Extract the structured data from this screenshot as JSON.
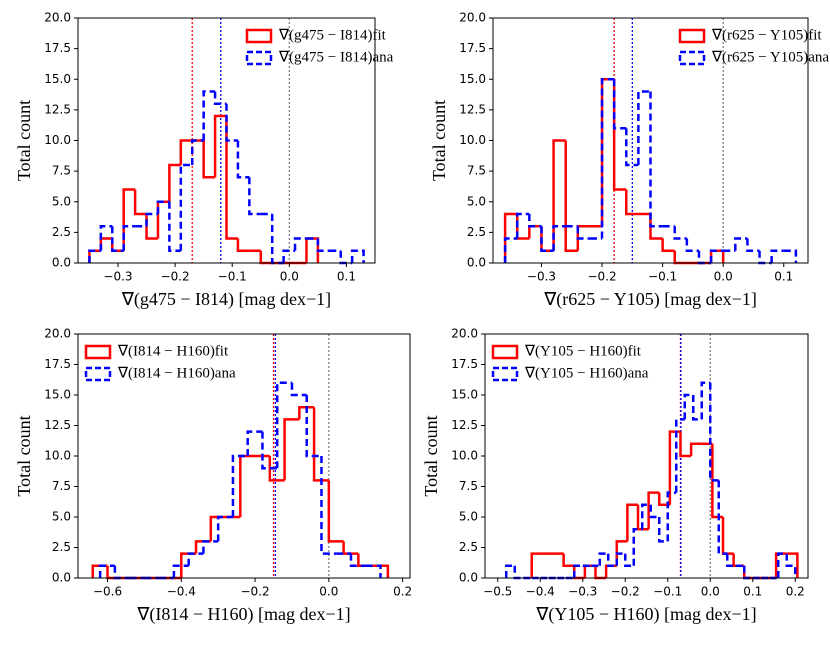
{
  "chart_data": [
    {
      "type": "histogram",
      "xlabel": "∇(g475 − I814) [mag dex−1]",
      "ylabel": "Total count",
      "xlim": [
        -0.37,
        0.15
      ],
      "ylim": [
        0,
        20
      ],
      "xticks": [
        {
          "value": -0.3,
          "label": "−0.3"
        },
        {
          "value": -0.2,
          "label": "−0.2"
        },
        {
          "value": -0.1,
          "label": "−0.1"
        },
        {
          "value": 0,
          "label": "0.0"
        },
        0.1
      ],
      "yticks": [
        {
          "value": 0,
          "label": "0.0"
        },
        2.5,
        {
          "value": 5,
          "label": "5.0"
        },
        7.5,
        {
          "value": 10,
          "label": "10.0"
        },
        12.5,
        {
          "value": 15,
          "label": "15.0"
        },
        17.5,
        {
          "value": 20,
          "label": "20.0"
        }
      ],
      "legend": "upper right",
      "vlines": [
        {
          "value": -0.17,
          "color": "#ff0000"
        },
        {
          "value": -0.12,
          "color": "#0000ff"
        },
        {
          "value": 0,
          "color": "#808080"
        }
      ],
      "series": [
        {
          "name": "∇(g475 − I814)fit",
          "color": "#ff0000",
          "linestyle": "solid",
          "bins": [
            -0.35,
            -0.33,
            -0.31,
            -0.29,
            -0.27,
            -0.25,
            -0.23,
            -0.21,
            -0.19,
            -0.17,
            -0.15,
            -0.13,
            -0.11,
            -0.09,
            -0.07,
            -0.05,
            -0.03,
            -0.01,
            0.01,
            0.03,
            0.05
          ],
          "values": [
            1,
            2,
            1,
            6,
            4,
            2,
            5,
            8,
            10,
            10,
            7,
            12,
            2,
            1,
            1,
            0,
            0,
            0,
            0,
            2
          ]
        },
        {
          "name": "∇(g475 − I814)ana",
          "color": "#0000ff",
          "linestyle": "dashed",
          "bins": [
            -0.35,
            -0.33,
            -0.31,
            -0.29,
            -0.27,
            -0.25,
            -0.23,
            -0.21,
            -0.19,
            -0.17,
            -0.15,
            -0.13,
            -0.11,
            -0.09,
            -0.07,
            -0.05,
            -0.03,
            -0.01,
            0.01,
            0.03,
            0.05,
            0.07,
            0.09,
            0.11,
            0.13
          ],
          "values": [
            1,
            3,
            1,
            3,
            3,
            4,
            5,
            1,
            8,
            10,
            14,
            13,
            10,
            7,
            4,
            4,
            0,
            1,
            2,
            2,
            1,
            1,
            0,
            1
          ]
        }
      ]
    },
    {
      "type": "histogram",
      "xlabel": "∇(r625 − Y105) [mag dex−1]",
      "ylabel": "Total count",
      "xlim": [
        -0.38,
        0.14
      ],
      "ylim": [
        0,
        20
      ],
      "xticks": [
        {
          "value": -0.3,
          "label": "−0.3"
        },
        {
          "value": -0.2,
          "label": "−0.2"
        },
        {
          "value": -0.1,
          "label": "−0.1"
        },
        {
          "value": 0,
          "label": "0.0"
        },
        0.1
      ],
      "yticks": [
        {
          "value": 0,
          "label": "0.0"
        },
        2.5,
        {
          "value": 5,
          "label": "5.0"
        },
        7.5,
        {
          "value": 10,
          "label": "10.0"
        },
        12.5,
        {
          "value": 15,
          "label": "15.0"
        },
        17.5,
        {
          "value": 20,
          "label": "20.0"
        }
      ],
      "legend": "upper right",
      "vlines": [
        {
          "value": -0.18,
          "color": "#ff0000"
        },
        {
          "value": -0.15,
          "color": "#0000ff"
        },
        {
          "value": 0,
          "color": "#808080"
        }
      ],
      "series": [
        {
          "name": "∇(r625 − Y105)fit",
          "color": "#ff0000",
          "linestyle": "solid",
          "bins": [
            -0.36,
            -0.34,
            -0.32,
            -0.3,
            -0.28,
            -0.26,
            -0.24,
            -0.22,
            -0.2,
            -0.18,
            -0.16,
            -0.14,
            -0.12,
            -0.1,
            -0.08,
            -0.06,
            -0.04,
            -0.02,
            0
          ],
          "values": [
            4,
            2,
            3,
            1,
            10,
            1,
            3,
            3,
            15,
            6,
            4,
            4,
            2,
            1,
            0,
            0,
            0,
            1
          ]
        },
        {
          "name": "∇(r625 − Y105)ana",
          "color": "#0000ff",
          "linestyle": "dashed",
          "bins": [
            -0.36,
            -0.34,
            -0.32,
            -0.3,
            -0.28,
            -0.26,
            -0.24,
            -0.22,
            -0.2,
            -0.18,
            -0.16,
            -0.14,
            -0.12,
            -0.1,
            -0.08,
            -0.06,
            -0.04,
            -0.02,
            0,
            0.02,
            0.04,
            0.06,
            0.08,
            0.1,
            0.12
          ],
          "values": [
            2,
            4,
            3,
            1,
            3,
            3,
            2,
            2,
            15,
            11,
            8,
            14,
            3,
            3,
            2,
            1,
            0,
            1,
            1,
            2,
            1,
            0,
            1,
            1
          ]
        }
      ]
    },
    {
      "type": "histogram",
      "xlabel": "∇(I814 − H160) [mag dex−1]",
      "ylabel": "Total count",
      "xlim": [
        -0.68,
        0.22
      ],
      "ylim": [
        0,
        20
      ],
      "xticks": [
        {
          "value": -0.6,
          "label": "−0.6"
        },
        {
          "value": -0.4,
          "label": "−0.4"
        },
        {
          "value": -0.2,
          "label": "−0.2"
        },
        {
          "value": 0,
          "label": "0.0"
        },
        0.2
      ],
      "yticks": [
        {
          "value": 0,
          "label": "0.0"
        },
        2.5,
        {
          "value": 5,
          "label": "5.0"
        },
        7.5,
        {
          "value": 10,
          "label": "10.0"
        },
        12.5,
        {
          "value": 15,
          "label": "15.0"
        },
        17.5,
        {
          "value": 20,
          "label": "20.0"
        }
      ],
      "legend": "upper left",
      "vlines": [
        {
          "value": -0.15,
          "color": "#ff0000"
        },
        {
          "value": -0.145,
          "color": "#0000ff"
        },
        {
          "value": 0,
          "color": "#808080"
        }
      ],
      "series": [
        {
          "name": "∇(I814 − H160)fit",
          "color": "#ff0000",
          "linestyle": "solid",
          "bins": [
            -0.64,
            -0.6,
            -0.56,
            -0.52,
            -0.48,
            -0.44,
            -0.4,
            -0.36,
            -0.32,
            -0.28,
            -0.24,
            -0.2,
            -0.16,
            -0.12,
            -0.08,
            -0.04,
            0,
            0.04,
            0.08,
            0.12,
            0.16
          ],
          "values": [
            1,
            0,
            0,
            0,
            0,
            0,
            2,
            3,
            5,
            5,
            10,
            10,
            8,
            13,
            14,
            8,
            3,
            2,
            1,
            1
          ]
        },
        {
          "name": "∇(I814 − H160)ana",
          "color": "#0000ff",
          "linestyle": "dashed",
          "bins": [
            -0.62,
            -0.58,
            -0.54,
            -0.5,
            -0.46,
            -0.42,
            -0.38,
            -0.34,
            -0.3,
            -0.26,
            -0.22,
            -0.18,
            -0.14,
            -0.1,
            -0.06,
            -0.02,
            0.02,
            0.06,
            0.1,
            0.14
          ],
          "values": [
            1,
            0,
            0,
            0,
            0,
            1,
            2,
            3,
            5,
            10,
            12,
            9,
            16,
            15,
            10,
            2,
            2,
            1,
            1
          ]
        }
      ]
    },
    {
      "type": "histogram",
      "xlabel": "∇(Y105 − H160) [mag dex−1]",
      "ylabel": "Total count",
      "xlim": [
        -0.53,
        0.23
      ],
      "ylim": [
        0,
        20
      ],
      "xticks": [
        {
          "value": -0.5,
          "label": "−0.5"
        },
        {
          "value": -0.4,
          "label": "−0.4"
        },
        {
          "value": -0.3,
          "label": "−0.3"
        },
        {
          "value": -0.2,
          "label": "−0.2"
        },
        {
          "value": -0.1,
          "label": "−0.1"
        },
        {
          "value": 0,
          "label": "0.0"
        },
        0.1,
        0.2
      ],
      "yticks": [
        {
          "value": 0,
          "label": "0.0"
        },
        2.5,
        {
          "value": 5,
          "label": "5.0"
        },
        7.5,
        {
          "value": 10,
          "label": "10.0"
        },
        12.5,
        {
          "value": 15,
          "label": "15.0"
        },
        17.5,
        {
          "value": 20,
          "label": "20.0"
        }
      ],
      "legend": "upper left",
      "vlines": [
        {
          "value": -0.07,
          "color": "#ff0000"
        },
        {
          "value": -0.069,
          "color": "#0000ff"
        },
        {
          "value": 0,
          "color": "#808080"
        }
      ],
      "series": [
        {
          "name": "∇(Y105 − H160)fit",
          "color": "#ff0000",
          "linestyle": "solid",
          "bins": [
            -0.42,
            -0.395,
            -0.37,
            -0.345,
            -0.32,
            -0.295,
            -0.27,
            -0.245,
            -0.22,
            -0.195,
            -0.17,
            -0.145,
            -0.12,
            -0.095,
            -0.07,
            -0.045,
            -0.02,
            0.005,
            0.03,
            0.055,
            0.08,
            0.105,
            0.13,
            0.155,
            0.18,
            0.205
          ],
          "values": [
            2,
            2,
            2,
            1,
            0,
            1,
            0,
            1,
            3,
            6,
            4,
            7,
            6,
            12,
            10,
            11,
            11,
            5,
            2,
            1,
            0,
            0,
            0,
            2,
            2
          ]
        },
        {
          "name": "∇(Y105 − H160)ana",
          "color": "#0000ff",
          "linestyle": "dashed",
          "bins": [
            -0.48,
            -0.46,
            -0.44,
            -0.42,
            -0.4,
            -0.38,
            -0.36,
            -0.34,
            -0.32,
            -0.3,
            -0.28,
            -0.26,
            -0.24,
            -0.22,
            -0.2,
            -0.18,
            -0.16,
            -0.14,
            -0.12,
            -0.1,
            -0.08,
            -0.06,
            -0.04,
            -0.02,
            0,
            0.02,
            0.04,
            0.06,
            0.08,
            0.1,
            0.12,
            0.14,
            0.16,
            0.18,
            0.2
          ],
          "values": [
            1,
            0,
            0,
            0,
            0,
            0,
            0,
            0,
            1,
            1,
            1,
            2,
            1,
            2,
            1,
            4,
            6,
            5,
            3,
            7,
            13,
            15,
            13,
            16,
            8,
            2,
            1,
            1,
            0,
            0,
            0,
            0,
            2,
            1
          ]
        }
      ]
    }
  ]
}
